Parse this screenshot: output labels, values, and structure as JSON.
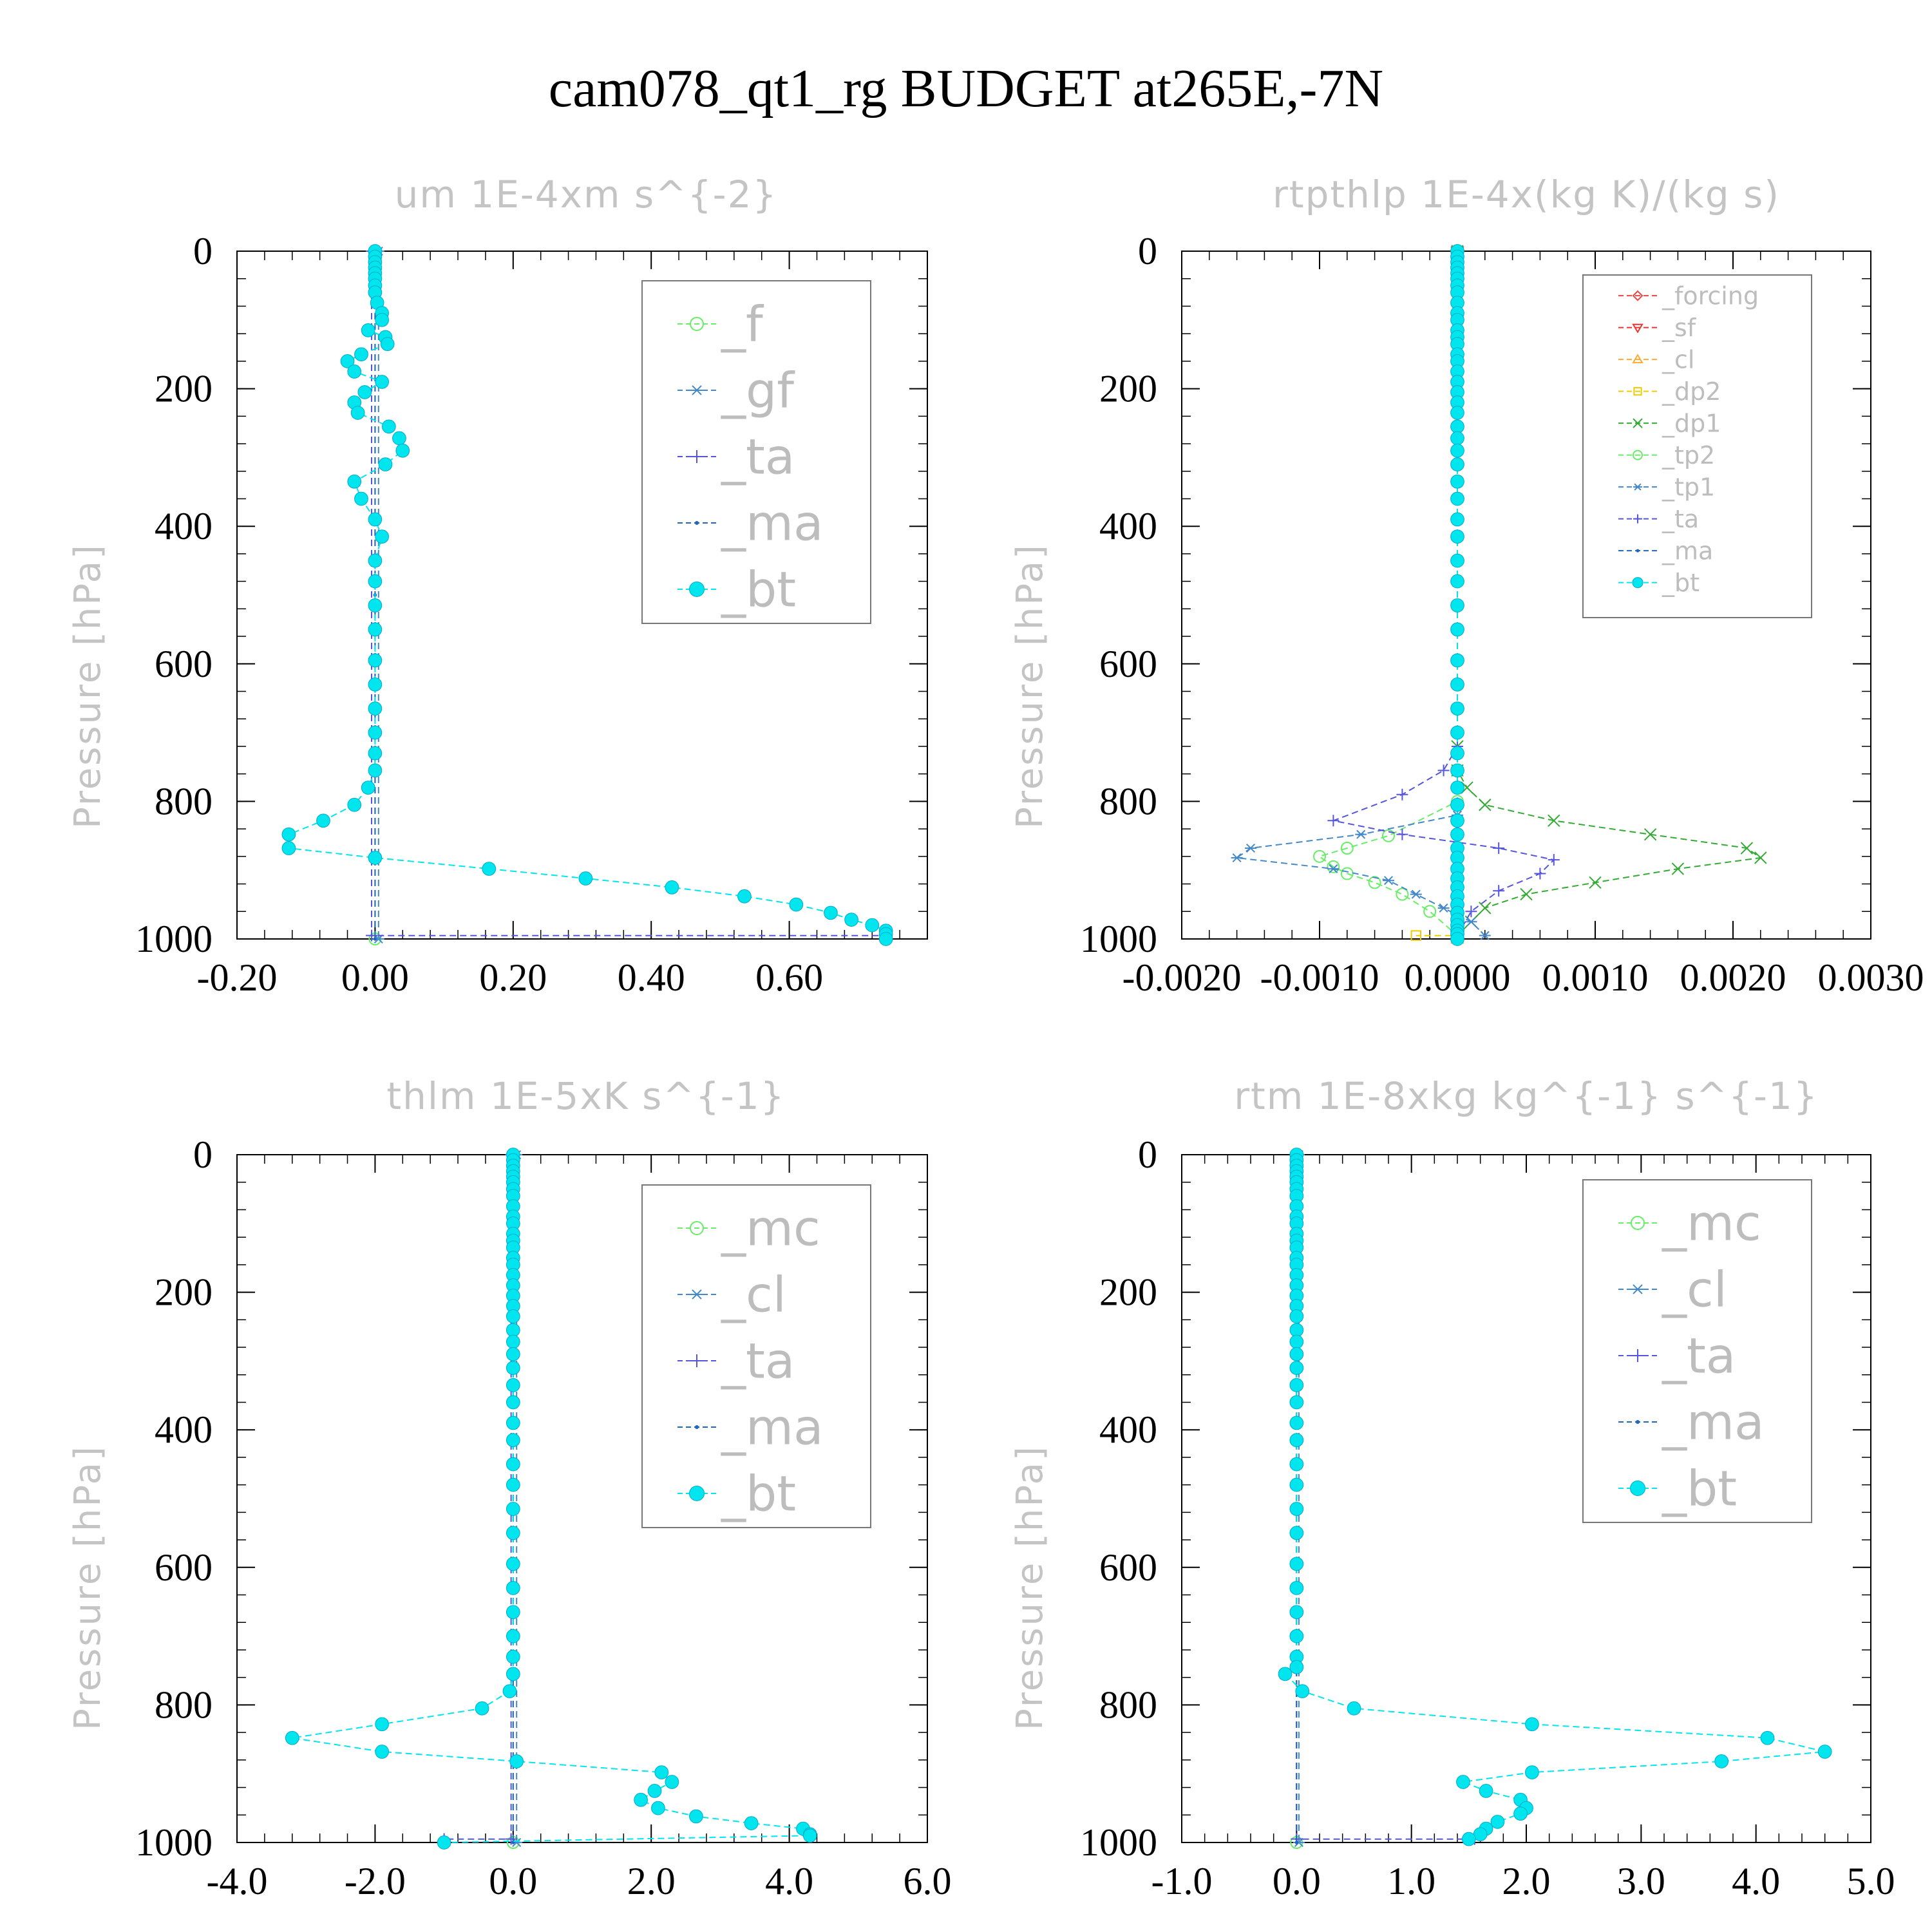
{
  "title": "cam078_qt1_rg  BUDGET at265E,-7N",
  "chart_data": [
    {
      "type": "line",
      "title": "um   1E-4xm  s^{-2}",
      "ylabel": "Pressure [hPa]",
      "xlim": [
        -0.2,
        0.8
      ],
      "ylim": [
        1000,
        0
      ],
      "xticks": [
        "-0.20",
        "0.00",
        "0.20",
        "0.40",
        "0.60"
      ],
      "yticks": [
        "0",
        "200",
        "400",
        "600",
        "800",
        "1000"
      ],
      "legend_position": "top-right",
      "series": [
        {
          "name": "_f",
          "color": "#66ee66",
          "marker": "circle",
          "x": [
            0,
            0
          ],
          "y": [
            0,
            1000
          ]
        },
        {
          "name": "_gf",
          "color": "#4488cc",
          "marker": "asterisk",
          "x": [
            0.005,
            0.005
          ],
          "y": [
            0,
            1000
          ]
        },
        {
          "name": "_ta",
          "color": "#5555dd",
          "marker": "plus",
          "x": [
            -0.005,
            -0.005,
            0.74
          ],
          "y": [
            0,
            995,
            995
          ]
        },
        {
          "name": "_ma",
          "color": "#2266bb",
          "marker": "dot",
          "x": [
            0,
            0,
            0
          ],
          "y": [
            0,
            500,
            1000
          ]
        },
        {
          "name": "_bt",
          "color": "#00e5ee",
          "marker": "filled-circle",
          "x": [
            0,
            0,
            0,
            0,
            0,
            0,
            0,
            0,
            0.003,
            0.01,
            0.01,
            -0.01,
            0.015,
            0.018,
            -0.02,
            -0.04,
            -0.03,
            0.01,
            -0.015,
            -0.03,
            -0.025,
            0.02,
            0.035,
            0.04,
            0.015,
            -0.03,
            -0.02,
            0,
            0.01,
            0,
            0,
            0,
            0,
            0,
            0,
            0,
            0,
            0,
            0,
            -0.01,
            -0.03,
            -0.075,
            -0.125,
            -0.125,
            0,
            0.165,
            0.305,
            0.43,
            0.535,
            0.61,
            0.66,
            0.69,
            0.72,
            0.74,
            0.74,
            0.74
          ],
          "y": [
            0,
            8,
            16,
            24,
            32,
            40,
            50,
            60,
            75,
            90,
            100,
            115,
            125,
            135,
            150,
            160,
            175,
            190,
            205,
            220,
            235,
            255,
            272,
            290,
            310,
            335,
            360,
            390,
            415,
            450,
            480,
            515,
            550,
            595,
            630,
            665,
            700,
            730,
            755,
            780,
            805,
            828,
            848,
            868,
            882,
            898,
            912,
            925,
            938,
            950,
            962,
            972,
            980,
            988,
            993,
            1000
          ]
        }
      ]
    },
    {
      "type": "line",
      "title": "rtpthlp   1E-4x(kg  K)/(kg  s)",
      "ylabel": "Pressure [hPa]",
      "xlim": [
        -0.002,
        0.003
      ],
      "ylim": [
        1000,
        0
      ],
      "xticks": [
        "-0.0020",
        "-0.0010",
        "0.0000",
        "0.0010",
        "0.0020",
        "0.0030"
      ],
      "yticks": [
        "0",
        "200",
        "400",
        "600",
        "800",
        "1000"
      ],
      "legend_position": "top-right",
      "series": [
        {
          "name": "_forcing",
          "color": "#ee4444",
          "marker": "diamond",
          "x": [
            0,
            0
          ],
          "y": [
            0,
            1000
          ]
        },
        {
          "name": "_sf",
          "color": "#ee3333",
          "marker": "triangle-down",
          "x": [
            0,
            0
          ],
          "y": [
            0,
            1000
          ]
        },
        {
          "name": "_cl",
          "color": "#ffaa33",
          "marker": "triangle-up",
          "x": [
            0,
            0
          ],
          "y": [
            0,
            1000
          ]
        },
        {
          "name": "_dp2",
          "color": "#eecc00",
          "marker": "square",
          "x": [
            0,
            0,
            -0.0003
          ],
          "y": [
            0,
            995,
            995
          ]
        },
        {
          "name": "_dp1",
          "color": "#33aa33",
          "marker": "x",
          "x": [
            0,
            0,
            0,
            7e-05,
            0.0002,
            0.0007,
            0.0014,
            0.0021,
            0.0022,
            0.0016,
            0.001,
            0.0005,
            0.0002,
            0.0001,
            0
          ],
          "y": [
            0,
            720,
            755,
            780,
            805,
            828,
            848,
            868,
            882,
            898,
            918,
            935,
            955,
            975,
            995
          ]
        },
        {
          "name": "_tp2",
          "color": "#66ee66",
          "marker": "circle",
          "x": [
            0,
            0,
            -0.0005,
            -0.0008,
            -0.001,
            -0.0009,
            -0.0008,
            -0.0006,
            -0.0004,
            -0.0002,
            0
          ],
          "y": [
            0,
            800,
            850,
            868,
            880,
            895,
            905,
            918,
            935,
            960,
            995
          ]
        },
        {
          "name": "_tp1",
          "color": "#4488cc",
          "marker": "asterisk",
          "x": [
            0,
            0,
            -0.0007,
            -0.0015,
            -0.0016,
            -0.0009,
            -0.0005,
            -0.0003,
            -0.0001,
            0.0001,
            0.0002
          ],
          "y": [
            0,
            820,
            848,
            868,
            882,
            898,
            915,
            935,
            955,
            975,
            995
          ]
        },
        {
          "name": "_ta",
          "color": "#5555dd",
          "marker": "plus",
          "x": [
            0,
            0,
            -0.0001,
            -0.0004,
            -0.0009,
            -0.0004,
            0.0003,
            0.0007,
            0.0006,
            0.0003,
            0.0001,
            0
          ],
          "y": [
            0,
            720,
            755,
            790,
            828,
            848,
            868,
            885,
            905,
            930,
            960,
            995
          ]
        },
        {
          "name": "_ma",
          "color": "#2266bb",
          "marker": "dot",
          "x": [
            0,
            0
          ],
          "y": [
            0,
            1000
          ]
        },
        {
          "name": "_bt",
          "color": "#00e5ee",
          "marker": "filled-circle",
          "x": [
            0,
            0,
            0,
            0,
            0,
            0,
            0,
            0,
            0,
            0,
            0,
            0,
            0,
            0,
            0,
            0,
            0,
            0,
            0,
            0,
            0,
            0,
            0,
            0,
            0,
            0,
            0,
            0,
            0,
            0,
            0,
            0,
            0,
            0,
            0,
            0,
            0,
            0,
            0,
            0,
            0,
            0,
            0,
            0,
            0,
            0,
            0,
            0,
            0,
            0,
            0,
            0,
            0,
            0,
            0,
            0
          ],
          "y": [
            0,
            8,
            16,
            24,
            32,
            40,
            50,
            60,
            75,
            90,
            100,
            115,
            125,
            135,
            150,
            160,
            175,
            190,
            205,
            220,
            235,
            255,
            272,
            290,
            310,
            335,
            360,
            390,
            415,
            450,
            480,
            515,
            550,
            595,
            630,
            665,
            700,
            730,
            755,
            780,
            805,
            828,
            848,
            868,
            882,
            898,
            912,
            925,
            938,
            950,
            962,
            972,
            980,
            988,
            993,
            1000
          ]
        }
      ]
    },
    {
      "type": "line",
      "title": "thlm   1E-5xK  s^{-1}",
      "ylabel": "Pressure [hPa]",
      "xlim": [
        -4,
        6
      ],
      "ylim": [
        1000,
        0
      ],
      "xticks": [
        "-4.0",
        "-2.0",
        "0.0",
        "2.0",
        "4.0",
        "6.0"
      ],
      "yticks": [
        "0",
        "200",
        "400",
        "600",
        "800",
        "1000"
      ],
      "legend_position": "top-right",
      "series": [
        {
          "name": "_mc",
          "color": "#66ee66",
          "marker": "circle",
          "x": [
            0,
            0
          ],
          "y": [
            0,
            1000
          ]
        },
        {
          "name": "_cl",
          "color": "#4488cc",
          "marker": "asterisk",
          "x": [
            0.05,
            0.05
          ],
          "y": [
            0,
            1000
          ]
        },
        {
          "name": "_ta",
          "color": "#5555dd",
          "marker": "plus",
          "x": [
            -0.03,
            -0.03,
            -1.0
          ],
          "y": [
            0,
            995,
            995
          ]
        },
        {
          "name": "_ma",
          "color": "#2266bb",
          "marker": "dot",
          "x": [
            0,
            0
          ],
          "y": [
            0,
            1000
          ]
        },
        {
          "name": "_bt",
          "color": "#00e5ee",
          "marker": "filled-circle",
          "x": [
            0,
            0,
            0,
            0,
            0,
            0,
            0,
            0,
            0,
            0,
            0,
            0,
            0,
            0,
            0,
            0,
            0,
            0,
            0,
            0,
            0,
            0,
            0,
            0,
            0,
            0,
            0,
            0,
            0,
            0,
            0,
            0,
            0,
            0,
            0,
            0,
            0,
            0,
            0,
            -0.05,
            -0.45,
            -1.9,
            -3.2,
            -1.9,
            0.05,
            2.15,
            2.3,
            2.05,
            1.85,
            2.1,
            2.65,
            3.45,
            4.2,
            4.3,
            4.3,
            -1.0
          ],
          "y": [
            0,
            8,
            16,
            24,
            32,
            40,
            50,
            60,
            75,
            90,
            100,
            115,
            125,
            135,
            150,
            160,
            175,
            190,
            205,
            220,
            235,
            255,
            272,
            290,
            310,
            335,
            360,
            390,
            415,
            450,
            480,
            515,
            550,
            595,
            630,
            665,
            700,
            730,
            755,
            780,
            805,
            828,
            848,
            868,
            882,
            898,
            912,
            925,
            938,
            950,
            962,
            972,
            980,
            988,
            990,
            1000
          ]
        }
      ]
    },
    {
      "type": "line",
      "title": "rtm   1E-8xkg  kg^{-1}  s^{-1}",
      "ylabel": "Pressure [hPa]",
      "xlim": [
        -1,
        5
      ],
      "ylim": [
        1000,
        0
      ],
      "xticks": [
        "-1.0",
        "0.0",
        "1.0",
        "2.0",
        "3.0",
        "4.0",
        "5.0"
      ],
      "yticks": [
        "0",
        "200",
        "400",
        "600",
        "800",
        "1000"
      ],
      "legend_position": "top-right",
      "series": [
        {
          "name": "_mc",
          "color": "#66ee66",
          "marker": "circle",
          "x": [
            0,
            0
          ],
          "y": [
            0,
            1000
          ]
        },
        {
          "name": "_cl",
          "color": "#4488cc",
          "marker": "asterisk",
          "x": [
            0.02,
            0.02
          ],
          "y": [
            0,
            1000
          ]
        },
        {
          "name": "_ta",
          "color": "#5555dd",
          "marker": "plus",
          "x": [
            0,
            0,
            1.55
          ],
          "y": [
            0,
            995,
            995
          ]
        },
        {
          "name": "_ma",
          "color": "#2266bb",
          "marker": "dot",
          "x": [
            0,
            0
          ],
          "y": [
            0,
            1000
          ]
        },
        {
          "name": "_bt",
          "color": "#00e5ee",
          "marker": "filled-circle",
          "x": [
            0,
            0,
            0,
            0,
            0,
            0,
            0,
            0,
            0,
            0,
            0,
            0,
            0,
            0,
            0,
            0,
            0,
            0,
            0,
            0,
            0,
            0,
            0,
            0,
            0,
            0,
            0,
            0,
            0,
            0,
            0,
            0,
            0,
            0,
            0,
            0,
            0,
            0,
            0.0,
            -0.1,
            0.05,
            0.5,
            2.05,
            4.1,
            4.6,
            3.7,
            2.05,
            1.45,
            1.65,
            1.95,
            2.0,
            1.95,
            1.75,
            1.65,
            1.6,
            1.5
          ],
          "y": [
            0,
            8,
            16,
            24,
            32,
            40,
            50,
            60,
            75,
            90,
            100,
            115,
            125,
            135,
            150,
            160,
            175,
            190,
            205,
            220,
            235,
            255,
            272,
            290,
            310,
            335,
            360,
            390,
            415,
            450,
            480,
            515,
            550,
            595,
            630,
            665,
            700,
            730,
            745,
            755,
            780,
            805,
            828,
            848,
            868,
            882,
            898,
            912,
            925,
            938,
            950,
            958,
            970,
            980,
            988,
            995
          ]
        }
      ]
    }
  ]
}
